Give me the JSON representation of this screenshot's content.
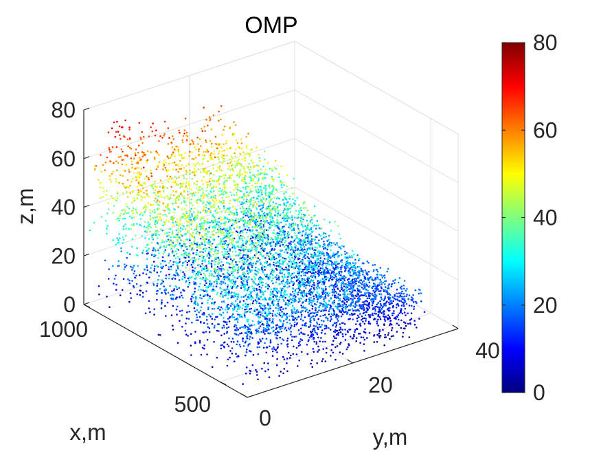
{
  "chart_data": {
    "type": "scatter3d",
    "title": "OMP",
    "xlabel": "x,m",
    "ylabel": "y,m",
    "zlabel": "z,m",
    "xlim": [
      400,
      1000
    ],
    "ylim": [
      0,
      40
    ],
    "zlim": [
      0,
      80
    ],
    "x_ticks": [
      500,
      1000
    ],
    "y_ticks": [
      0,
      20,
      40
    ],
    "z_ticks": [
      0,
      20,
      40,
      60,
      80
    ],
    "x_tick_labels": [
      "500",
      "1000"
    ],
    "y_tick_labels": [
      "0",
      "20",
      "40"
    ],
    "z_tick_labels": [
      "0",
      "20",
      "40",
      "60",
      "80"
    ],
    "colormap": "jet",
    "color_variable": "z",
    "colorbar": {
      "limits": [
        0,
        80
      ],
      "ticks": [
        0,
        20,
        40,
        60,
        80
      ],
      "tick_labels": [
        "0",
        "20",
        "40",
        "60",
        "80"
      ]
    },
    "point_cloud": {
      "description_x_range": [
        400,
        1000
      ],
      "description_y_range": [
        0,
        34
      ],
      "canopy_height_range": [
        25,
        80
      ],
      "point_count_estimate": 6000,
      "shading_wall_opacity": 0.0
    },
    "jet_stops": [
      "#00007f",
      "#0000ff",
      "#007fff",
      "#00ffff",
      "#7fff7f",
      "#ffff00",
      "#ff7f00",
      "#ff0000",
      "#7f0000"
    ]
  }
}
